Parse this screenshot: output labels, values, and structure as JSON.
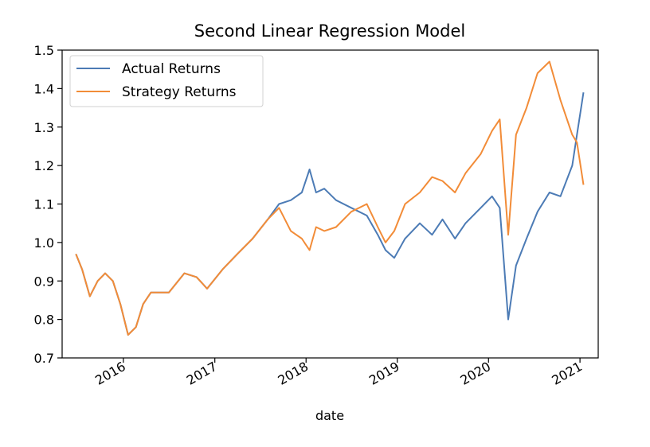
{
  "chart_data": {
    "type": "line",
    "title": "Second Linear Regression Model",
    "xlabel": "date",
    "ylabel": "",
    "ylim": [
      0.7,
      1.5
    ],
    "xlim": [
      "2015-05-01",
      "2021-03-15"
    ],
    "yticks": [
      "0.7",
      "0.8",
      "0.9",
      "1.0",
      "1.1",
      "1.2",
      "1.3",
      "1.4",
      "1.5"
    ],
    "xticks": [
      {
        "label": "2016",
        "date": "2016-01-01"
      },
      {
        "label": "2017",
        "date": "2017-01-01"
      },
      {
        "label": "2018",
        "date": "2018-01-01"
      },
      {
        "label": "2019",
        "date": "2019-01-01"
      },
      {
        "label": "2020",
        "date": "2020-01-01"
      },
      {
        "label": "2021",
        "date": "2021-01-01"
      }
    ],
    "grid": false,
    "legend_position": "top-left",
    "series": [
      {
        "name": "Actual Returns",
        "color": "#4c7bb5",
        "points": [
          [
            "2015-06-25",
            0.97
          ],
          [
            "2015-07-20",
            0.93
          ],
          [
            "2015-08-20",
            0.86
          ],
          [
            "2015-09-20",
            0.9
          ],
          [
            "2015-10-20",
            0.92
          ],
          [
            "2015-11-20",
            0.9
          ],
          [
            "2015-12-20",
            0.84
          ],
          [
            "2016-01-20",
            0.76
          ],
          [
            "2016-02-20",
            0.78
          ],
          [
            "2016-03-20",
            0.84
          ],
          [
            "2016-04-20",
            0.87
          ],
          [
            "2016-07-01",
            0.87
          ],
          [
            "2016-09-01",
            0.92
          ],
          [
            "2016-10-20",
            0.91
          ],
          [
            "2016-12-01",
            0.88
          ],
          [
            "2017-02-01",
            0.93
          ],
          [
            "2017-04-01",
            0.97
          ],
          [
            "2017-06-01",
            1.01
          ],
          [
            "2017-08-01",
            1.06
          ],
          [
            "2017-09-15",
            1.1
          ],
          [
            "2017-11-01",
            1.11
          ],
          [
            "2017-12-15",
            1.13
          ],
          [
            "2018-01-15",
            1.19
          ],
          [
            "2018-02-10",
            1.13
          ],
          [
            "2018-03-15",
            1.14
          ],
          [
            "2018-05-01",
            1.11
          ],
          [
            "2018-07-01",
            1.09
          ],
          [
            "2018-09-01",
            1.07
          ],
          [
            "2018-10-15",
            1.02
          ],
          [
            "2018-11-15",
            0.98
          ],
          [
            "2018-12-20",
            0.96
          ],
          [
            "2019-02-01",
            1.01
          ],
          [
            "2019-04-01",
            1.05
          ],
          [
            "2019-05-20",
            1.02
          ],
          [
            "2019-07-01",
            1.06
          ],
          [
            "2019-08-20",
            1.01
          ],
          [
            "2019-10-01",
            1.05
          ],
          [
            "2019-12-01",
            1.09
          ],
          [
            "2020-01-15",
            1.12
          ],
          [
            "2020-02-15",
            1.09
          ],
          [
            "2020-03-20",
            0.8
          ],
          [
            "2020-04-20",
            0.94
          ],
          [
            "2020-06-01",
            1.01
          ],
          [
            "2020-07-15",
            1.08
          ],
          [
            "2020-09-01",
            1.13
          ],
          [
            "2020-10-15",
            1.12
          ],
          [
            "2020-12-01",
            1.2
          ],
          [
            "2020-12-20",
            1.28
          ],
          [
            "2021-01-15",
            1.39
          ]
        ]
      },
      {
        "name": "Strategy Returns",
        "color": "#f28c38",
        "points": [
          [
            "2015-06-25",
            0.97
          ],
          [
            "2015-07-20",
            0.93
          ],
          [
            "2015-08-20",
            0.86
          ],
          [
            "2015-09-20",
            0.9
          ],
          [
            "2015-10-20",
            0.92
          ],
          [
            "2015-11-20",
            0.9
          ],
          [
            "2015-12-20",
            0.84
          ],
          [
            "2016-01-20",
            0.76
          ],
          [
            "2016-02-20",
            0.78
          ],
          [
            "2016-03-20",
            0.84
          ],
          [
            "2016-04-20",
            0.87
          ],
          [
            "2016-07-01",
            0.87
          ],
          [
            "2016-09-01",
            0.92
          ],
          [
            "2016-10-20",
            0.91
          ],
          [
            "2016-12-01",
            0.88
          ],
          [
            "2017-02-01",
            0.93
          ],
          [
            "2017-04-01",
            0.97
          ],
          [
            "2017-06-01",
            1.01
          ],
          [
            "2017-08-01",
            1.06
          ],
          [
            "2017-09-15",
            1.09
          ],
          [
            "2017-11-01",
            1.03
          ],
          [
            "2017-12-15",
            1.01
          ],
          [
            "2018-01-15",
            0.98
          ],
          [
            "2018-02-10",
            1.04
          ],
          [
            "2018-03-15",
            1.03
          ],
          [
            "2018-05-01",
            1.04
          ],
          [
            "2018-07-01",
            1.08
          ],
          [
            "2018-09-01",
            1.1
          ],
          [
            "2018-10-15",
            1.04
          ],
          [
            "2018-11-15",
            1.0
          ],
          [
            "2018-12-20",
            1.03
          ],
          [
            "2019-02-01",
            1.1
          ],
          [
            "2019-04-01",
            1.13
          ],
          [
            "2019-05-20",
            1.17
          ],
          [
            "2019-07-01",
            1.16
          ],
          [
            "2019-08-20",
            1.13
          ],
          [
            "2019-10-01",
            1.18
          ],
          [
            "2019-12-01",
            1.23
          ],
          [
            "2020-01-15",
            1.29
          ],
          [
            "2020-02-15",
            1.32
          ],
          [
            "2020-03-20",
            1.02
          ],
          [
            "2020-04-20",
            1.28
          ],
          [
            "2020-06-01",
            1.35
          ],
          [
            "2020-07-15",
            1.44
          ],
          [
            "2020-09-01",
            1.47
          ],
          [
            "2020-10-15",
            1.37
          ],
          [
            "2020-12-01",
            1.28
          ],
          [
            "2020-12-20",
            1.26
          ],
          [
            "2021-01-15",
            1.15
          ]
        ]
      }
    ]
  }
}
